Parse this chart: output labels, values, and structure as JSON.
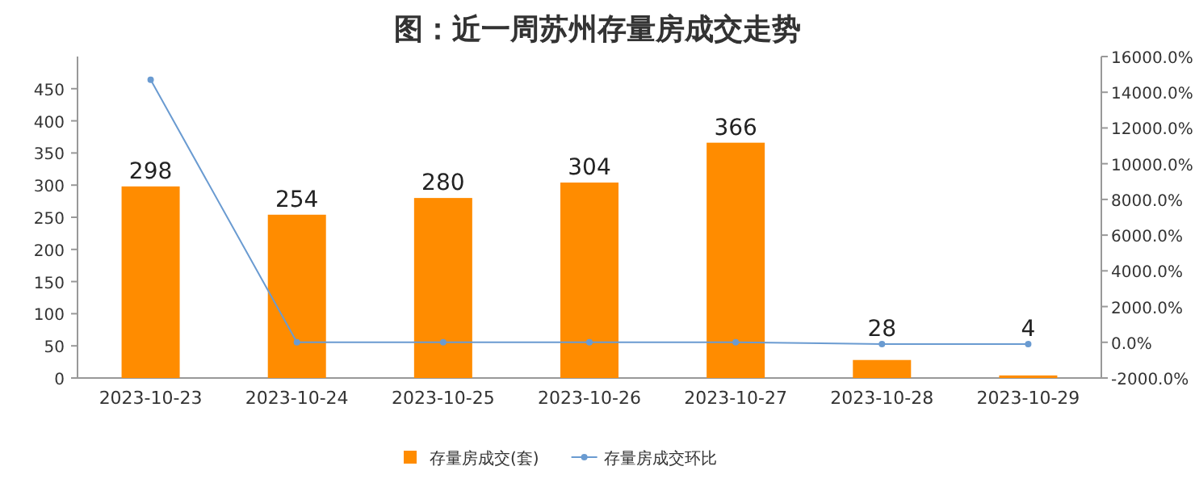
{
  "chart_data": {
    "type": "bar",
    "title": "图：近一周苏州存量房成交走势",
    "categories": [
      "2023-10-23",
      "2023-10-24",
      "2023-10-25",
      "2023-10-26",
      "2023-10-27",
      "2023-10-28",
      "2023-10-29"
    ],
    "series": [
      {
        "name": "存量房成交(套)",
        "color": "#ff8c00",
        "values": [
          298,
          254,
          280,
          304,
          366,
          28,
          4
        ],
        "value_labels": [
          "298",
          "254",
          "280",
          "304",
          "366",
          "28",
          "4"
        ]
      },
      {
        "name": "存量房成交环比",
        "type": "line",
        "axis": "y2",
        "color": "#6a9bd1",
        "marker": "circle",
        "values": [
          14700,
          0,
          0,
          0,
          0,
          -100,
          -100
        ]
      }
    ],
    "ylim": [
      0,
      500
    ],
    "yticks": [
      0,
      50,
      100,
      150,
      200,
      250,
      300,
      350,
      400,
      450
    ],
    "y2lim": [
      -2000,
      16000
    ],
    "y2ticks": [
      {
        "value": -2000,
        "label": "-2000.0%"
      },
      {
        "value": 0,
        "label": "0.0%"
      },
      {
        "value": 2000,
        "label": "2000.0%"
      },
      {
        "value": 4000,
        "label": "4000.0%"
      },
      {
        "value": 6000,
        "label": "6000.0%"
      },
      {
        "value": 8000,
        "label": "8000.0%"
      },
      {
        "value": 10000,
        "label": "10000.0%"
      },
      {
        "value": 12000,
        "label": "12000.0%"
      },
      {
        "value": 14000,
        "label": "14000.0%"
      },
      {
        "value": 16000,
        "label": "16000.0%"
      }
    ],
    "legend": "bottom"
  }
}
